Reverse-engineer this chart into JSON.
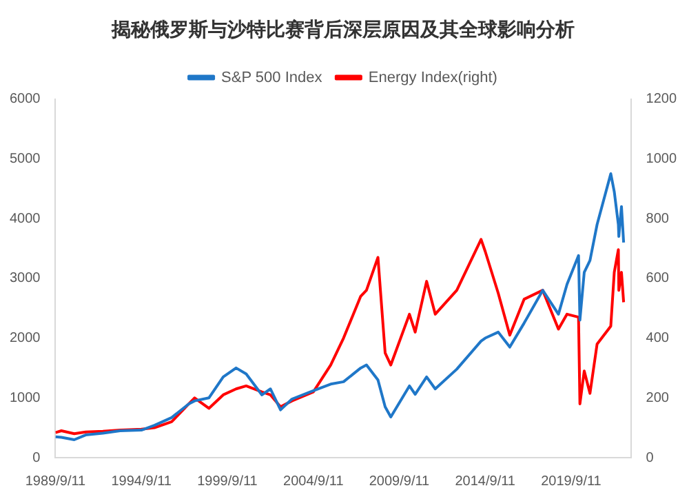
{
  "chart_data": {
    "type": "line",
    "title": "揭秘俄罗斯与沙特比赛背后深层原因及其全球影响分析",
    "legend": "top",
    "grid": false,
    "marker": "none",
    "xlim": [
      "1989-09-11",
      "2023-03-01"
    ],
    "xticks": [
      {
        "value": "1989-09-11",
        "label": "1989/9/11"
      },
      {
        "value": "1994-09-11",
        "label": "1994/9/11"
      },
      {
        "value": "1999-09-11",
        "label": "1999/9/11"
      },
      {
        "value": "2004-09-11",
        "label": "2004/9/11"
      },
      {
        "value": "2009-09-11",
        "label": "2009/9/11"
      },
      {
        "value": "2014-09-11",
        "label": "2014/9/11"
      },
      {
        "value": "2019-09-11",
        "label": "2019/9/11"
      }
    ],
    "ylim": [
      0,
      6000
    ],
    "yticks": [
      0,
      1000,
      2000,
      3000,
      4000,
      5000,
      6000
    ],
    "y2lim": [
      0,
      1200
    ],
    "y2ticks": [
      0,
      200,
      400,
      600,
      800,
      1000,
      1200
    ],
    "x": [
      "1989-09-11",
      "1990-01-15",
      "1990-10-15",
      "1991-06-15",
      "1992-06-15",
      "1993-06-15",
      "1994-09-11",
      "1995-06-15",
      "1996-06-15",
      "1997-06-15",
      "1997-10-15",
      "1998-08-15",
      "1999-06-15",
      "2000-03-15",
      "2000-10-15",
      "2001-09-15",
      "2002-03-15",
      "2002-10-15",
      "2003-06-15",
      "2004-09-11",
      "2005-09-15",
      "2006-06-15",
      "2007-06-15",
      "2007-10-15",
      "2008-06-15",
      "2008-11-15",
      "2009-03-15",
      "2010-04-15",
      "2010-08-15",
      "2011-04-15",
      "2011-10-15",
      "2013-01-15",
      "2014-06-15",
      "2014-09-11",
      "2015-06-15",
      "2016-02-15",
      "2016-12-15",
      "2018-01-15",
      "2018-12-15",
      "2019-06-15",
      "2020-02-15",
      "2020-03-15",
      "2020-06-15",
      "2020-10-15",
      "2021-03-15",
      "2021-12-31",
      "2022-03-15",
      "2022-06-10",
      "2022-06-20",
      "2022-08-15",
      "2022-09-30"
    ],
    "series": [
      {
        "name": "S&P 500 Index",
        "color": "#1f77c8",
        "values": [
          350,
          340,
          300,
          380,
          410,
          450,
          460,
          540,
          670,
          900,
          950,
          1000,
          1350,
          1500,
          1400,
          1050,
          1150,
          800,
          980,
          1120,
          1230,
          1270,
          1500,
          1550,
          1300,
          850,
          680,
          1200,
          1060,
          1350,
          1150,
          1480,
          1950,
          2000,
          2100,
          1850,
          2250,
          2800,
          2400,
          2900,
          3380,
          2300,
          3100,
          3300,
          3900,
          4750,
          4450,
          3900,
          3700,
          4200,
          3600
        ]
      },
      {
        "name": "Energy Index(right)",
        "color": "#ff0000",
        "axis": "y2",
        "values": [
          84,
          90,
          80,
          86,
          88,
          92,
          95,
          100,
          120,
          180,
          200,
          165,
          210,
          230,
          240,
          220,
          210,
          170,
          190,
          220,
          310,
          400,
          540,
          560,
          670,
          350,
          310,
          480,
          420,
          590,
          480,
          560,
          730,
          690,
          550,
          410,
          530,
          560,
          430,
          480,
          470,
          180,
          290,
          215,
          380,
          440,
          620,
          696,
          560,
          620,
          520
        ]
      }
    ]
  }
}
